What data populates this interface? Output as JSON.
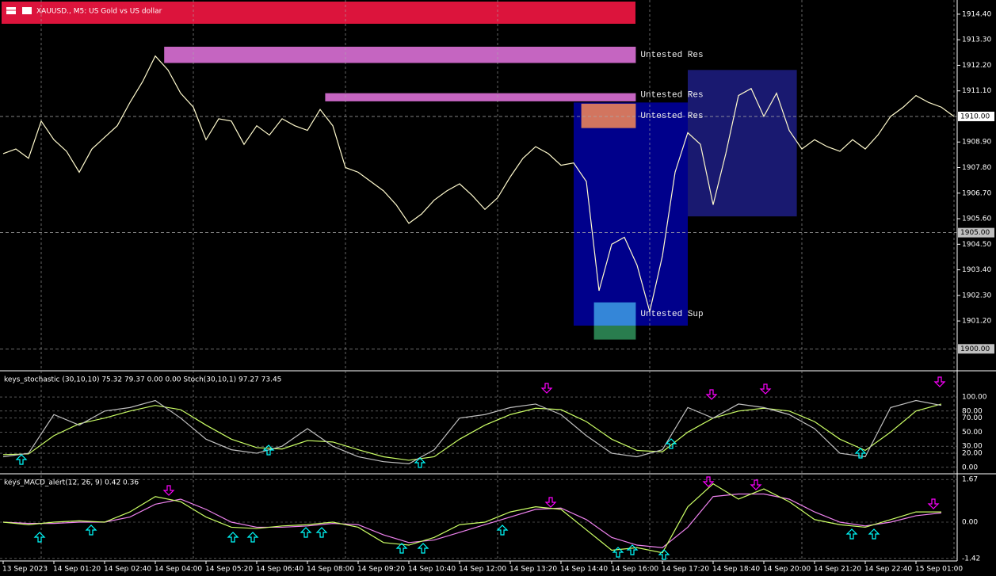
{
  "chart_data": [
    {
      "type": "line",
      "title": "XAUUSD., M5:  US Gold vs US dollar",
      "color": "#fffacd",
      "grid": true,
      "categories": [
        "13 Sep 2023",
        null,
        null,
        null,
        "14 Sep 01:20",
        null,
        null,
        null,
        "14 Sep 02:40",
        null,
        null,
        null,
        "14 Sep 04:00",
        null,
        null,
        null,
        "14 Sep 05:20",
        null,
        null,
        null,
        "14 Sep 06:40",
        null,
        null,
        null,
        "14 Sep 08:00",
        null,
        null,
        null,
        "14 Sep 09:20",
        null,
        null,
        null,
        "14 Sep 10:40",
        null,
        null,
        null,
        "14 Sep 12:00",
        null,
        null,
        null,
        "14 Sep 13:20",
        null,
        null,
        null,
        "14 Sep 14:40",
        null,
        null,
        null,
        "14 Sep 16:00",
        null,
        null,
        null,
        "14 Sep 17:20",
        null,
        null,
        null,
        "14 Sep 18:40",
        null,
        null,
        null,
        "14 Sep 20:00",
        null,
        null,
        null,
        "14 Sep 21:20",
        null,
        null,
        null,
        "14 Sep 22:40",
        null,
        null,
        null,
        "15 Sep 01:00",
        null,
        null,
        null
      ],
      "values": [
        1908.4,
        1908.6,
        1908.2,
        1909.8,
        1909.0,
        1908.5,
        1907.6,
        1908.6,
        1909.1,
        1909.6,
        1910.6,
        1911.5,
        1912.6,
        1912.0,
        1911.0,
        1910.4,
        1909.0,
        1909.9,
        1909.8,
        1908.8,
        1909.6,
        1909.2,
        1909.9,
        1909.6,
        1909.4,
        1910.3,
        1909.6,
        1907.8,
        1907.6,
        1907.2,
        1906.8,
        1906.2,
        1905.4,
        1905.8,
        1906.4,
        1906.8,
        1907.1,
        1906.6,
        1906.0,
        1906.5,
        1907.4,
        1908.2,
        1908.7,
        1908.4,
        1907.9,
        1908.0,
        1907.2,
        1902.5,
        1904.5,
        1904.8,
        1903.6,
        1901.6,
        1904.0,
        1907.6,
        1909.3,
        1908.8,
        1906.2,
        1908.4,
        1910.9,
        1911.2,
        1910.0,
        1911.0,
        1909.4,
        1908.6,
        1909.0,
        1908.7,
        1908.5,
        1909.0,
        1908.6,
        1909.2,
        1910.0,
        1910.4,
        1910.9,
        1910.6,
        1910.4,
        1910.0
      ],
      "ylim": [
        1899.09,
        1915.01
      ],
      "yticks": [
        {
          "value": 1914.4,
          "label": "1914.40"
        },
        {
          "value": 1913.3,
          "label": "1913.30"
        },
        {
          "value": 1912.2,
          "label": "1912.20"
        },
        {
          "value": 1911.1,
          "label": "1911.10"
        },
        {
          "value": 1908.9,
          "label": "1908.90"
        },
        {
          "value": 1907.8,
          "label": "1907.80"
        },
        {
          "value": 1906.7,
          "label": "1906.70"
        },
        {
          "value": 1905.6,
          "label": "1905.60"
        },
        {
          "value": 1904.5,
          "label": "1904.50"
        },
        {
          "value": 1903.4,
          "label": "1903.40"
        },
        {
          "value": 1902.3,
          "label": "1902.30"
        },
        {
          "value": 1901.2,
          "label": "1901.20"
        }
      ],
      "levels": [
        {
          "value": 1910,
          "label": "1910.00",
          "color": "#ffffff"
        },
        {
          "value": 1905,
          "label": "1905.00",
          "color": "#c0c0c0"
        },
        {
          "value": 1900,
          "label": "1900.00",
          "color": "#c0c0c0"
        }
      ],
      "boxes": [
        {
          "range": [
            1901.0,
            1910.6
          ],
          "from": 45,
          "to": 54,
          "color": "#00008b"
        },
        {
          "range": [
            1905.7,
            1912.0
          ],
          "from": 54,
          "to": 62.6,
          "color": "#191970"
        }
      ],
      "zones": [
        {
          "label": "Untested Res",
          "range": [
            1912.3,
            1913.0
          ],
          "from": 12.7,
          "to": 49.9,
          "color": "#da70d6"
        },
        {
          "label": "Untested Res",
          "range": [
            1910.65,
            1911.0
          ],
          "from": 25.4,
          "to": 49.9,
          "color": "#da70d6"
        },
        {
          "label": "Untested Res",
          "range": [
            1909.5,
            1910.55
          ],
          "from": 45.6,
          "to": 49.9,
          "color": "#e9825a"
        },
        {
          "label": "Untested Sup",
          "range": [
            1901.0,
            1902.0
          ],
          "from": 46.6,
          "to": 49.9,
          "color": "#3a95e0"
        },
        {
          "range": [
            1900.4,
            1901.0
          ],
          "from": 46.6,
          "to": 49.9,
          "color": "#2e8b57"
        }
      ]
    },
    {
      "type": "line",
      "title": "keys_stochastic (30,10,10) 75.32 79.37 0.00 0.00 Stoch(30,10,1) 97.27 73.45",
      "color": "#c0c0c0",
      "signal_color": "#ccff66",
      "values": [
        15,
        20,
        75,
        60,
        80,
        85,
        95,
        70,
        40,
        25,
        20,
        30,
        55,
        30,
        15,
        8,
        5,
        25,
        70,
        75,
        85,
        90,
        75,
        45,
        20,
        15,
        25,
        85,
        70,
        90,
        85,
        75,
        55,
        20,
        15,
        85,
        95,
        88
      ],
      "signal": [
        18,
        19,
        45,
        62,
        70,
        80,
        88,
        82,
        60,
        40,
        28,
        26,
        38,
        36,
        25,
        15,
        10,
        15,
        40,
        60,
        75,
        84,
        82,
        65,
        40,
        24,
        22,
        50,
        70,
        80,
        84,
        80,
        65,
        40,
        24,
        50,
        80,
        90
      ],
      "ylim": [
        -7,
        135
      ],
      "yticks": [
        {
          "value": 100,
          "label": "100.00"
        },
        {
          "value": 80,
          "label": "80.00"
        },
        {
          "value": 70,
          "label": "70.00"
        },
        {
          "value": 50,
          "label": "50.00"
        },
        {
          "value": 30,
          "label": "30.00"
        },
        {
          "value": 20,
          "label": "20.00"
        },
        {
          "value": 0,
          "label": "0.00"
        }
      ]
    },
    {
      "type": "line",
      "title": "keys_MACD_alert(12, 26, 9) 0.42 0.36",
      "color": "#ccff66",
      "signal_color": "#ee82ee",
      "values": [
        0.0,
        -0.1,
        0.0,
        0.05,
        0.0,
        0.4,
        1.0,
        0.8,
        0.2,
        -0.2,
        -0.25,
        -0.15,
        -0.1,
        0.0,
        -0.2,
        -0.8,
        -0.9,
        -0.6,
        -0.1,
        0.0,
        0.4,
        0.6,
        0.5,
        -0.3,
        -1.1,
        -1.0,
        -1.2,
        0.6,
        1.5,
        0.9,
        1.3,
        0.8,
        0.1,
        -0.1,
        -0.2,
        0.1,
        0.4,
        0.4
      ],
      "signal": [
        0.0,
        -0.05,
        -0.05,
        0.0,
        0.0,
        0.2,
        0.7,
        0.9,
        0.5,
        0.0,
        -0.2,
        -0.2,
        -0.15,
        -0.05,
        -0.1,
        -0.5,
        -0.8,
        -0.7,
        -0.4,
        -0.1,
        0.2,
        0.5,
        0.55,
        0.1,
        -0.6,
        -0.9,
        -1.0,
        -0.2,
        1.0,
        1.1,
        1.1,
        0.9,
        0.4,
        0.0,
        -0.15,
        0.0,
        0.25,
        0.36
      ],
      "ylim": [
        -1.52,
        1.83
      ],
      "yticks": [
        1.67,
        {
          "value": 0,
          "label": "0.00"
        },
        -1.42
      ]
    }
  ]
}
